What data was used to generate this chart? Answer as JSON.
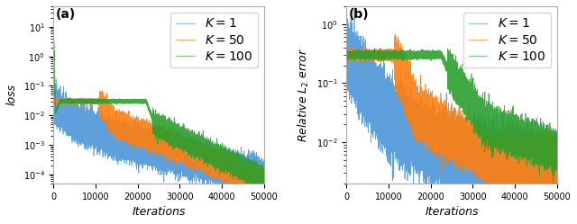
{
  "title_a": "(a)",
  "title_b": "(b)",
  "xlabel": "Iterations",
  "ylabel_a": "loss",
  "ylabel_b": "Relative $L_2$ error",
  "legend_labels": [
    "$K=1$",
    "$K=50$",
    "$K=100$"
  ],
  "colors": [
    "#4C96D7",
    "#FF7F0E",
    "#2CA02C"
  ],
  "xlim": [
    0,
    50000
  ],
  "ylim_a": [
    5e-05,
    50
  ],
  "ylim_b": [
    0.002,
    2
  ],
  "n_iter": 50000,
  "figsize": [
    6.4,
    2.49
  ],
  "dpi": 100
}
